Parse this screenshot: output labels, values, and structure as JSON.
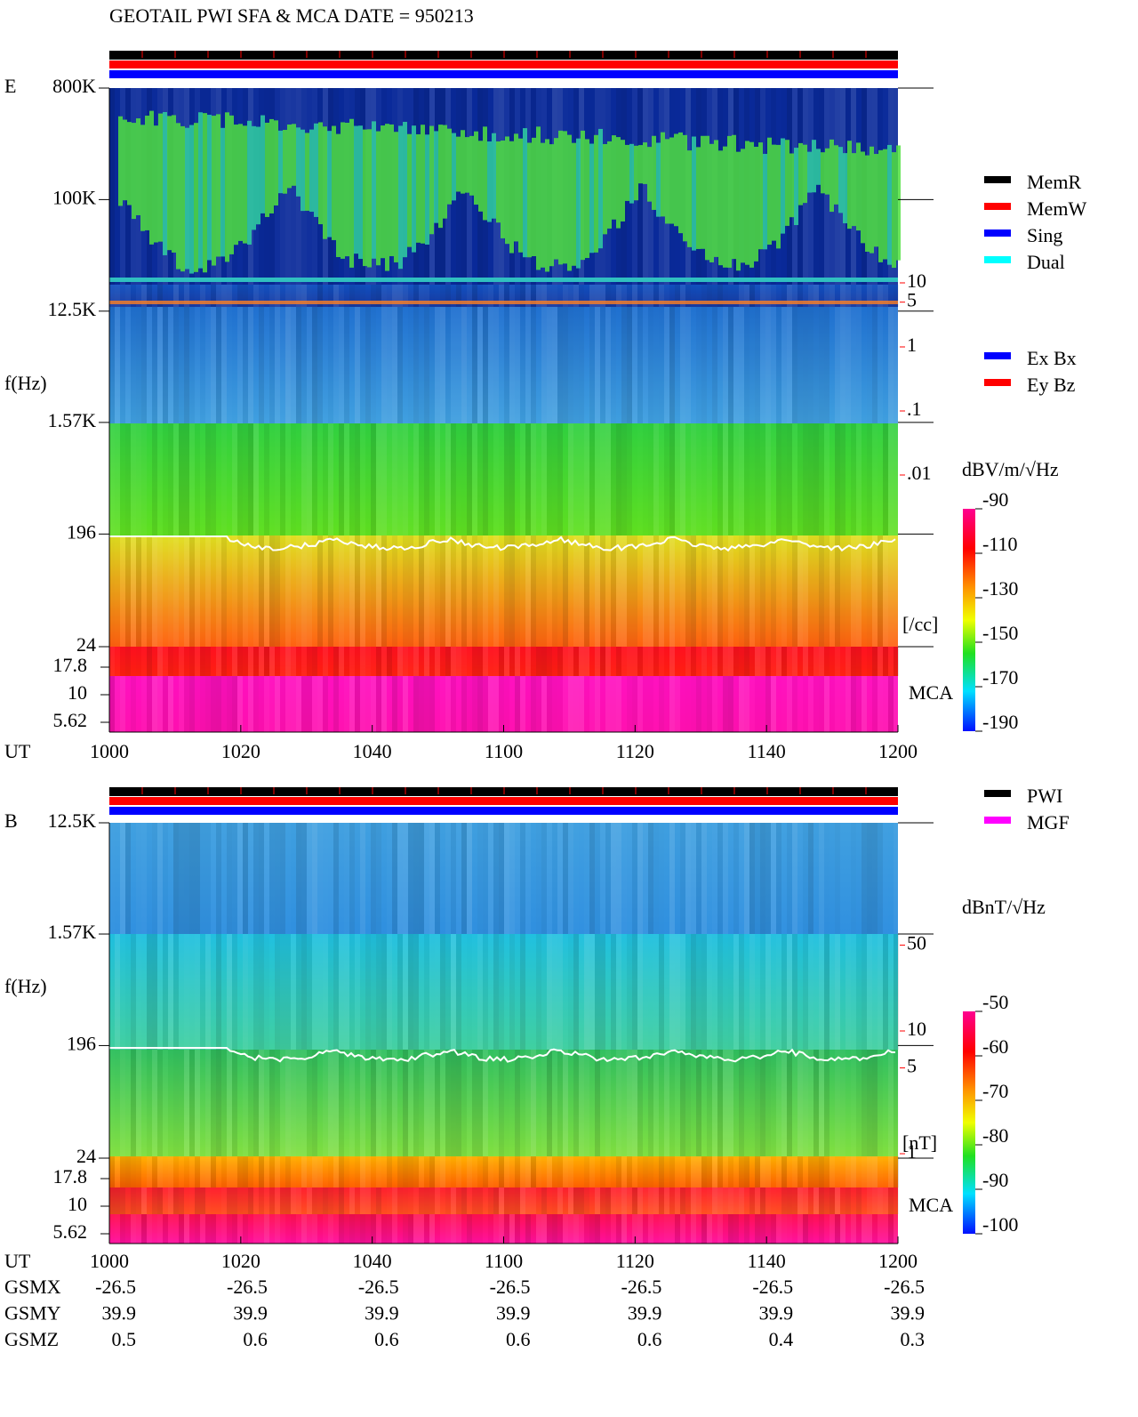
{
  "title": "GEOTAIL  PWI SFA & MCA   DATE = 950213",
  "chart_data": [
    {
      "type": "spectrogram",
      "panel_label": "E",
      "y_label": "f(Hz)",
      "x_label": "UT",
      "categories": [
        "1000",
        "1020",
        "1040",
        "1100",
        "1120",
        "1140",
        "1200"
      ],
      "log_y": true,
      "ylim": [
        24,
        800000
      ],
      "yticks": [
        {
          "value": 800000,
          "label": "800K"
        },
        {
          "value": 100000,
          "label": "100K"
        },
        {
          "value": 12500,
          "label": "12.5K"
        },
        {
          "value": 1570,
          "label": "1.57K"
        },
        196,
        24
      ],
      "mca_label": "MCA",
      "mca_ticks": [
        17.8,
        10,
        5.62
      ],
      "legend": [
        {
          "name": "MemR",
          "color": "#000000"
        },
        {
          "name": "MemW",
          "color": "#ff0000"
        },
        {
          "name": "Sing",
          "color": "#0000ff"
        },
        {
          "name": "Dual",
          "color": "#00ffff"
        }
      ],
      "component_legend": [
        {
          "name": "Ex Bx",
          "color": "#0000ff"
        },
        {
          "name": "Ey Bz",
          "color": "#ff0000"
        }
      ],
      "colorbar": {
        "label": "dBV/m/√Hz",
        "lim": [
          -190,
          -90
        ],
        "ticks": [
          -90,
          -110,
          -130,
          -150,
          -170,
          -190
        ]
      },
      "density_scale": {
        "label": "[/cc]",
        "color": "#ff0000",
        "ticks": [
          10,
          5,
          1,
          {
            "value": 0.1,
            "label": ".1"
          },
          {
            "value": 0.01,
            "label": ".01"
          }
        ]
      }
    },
    {
      "type": "spectrogram",
      "panel_label": "B",
      "y_label": "f(Hz)",
      "x_label": "UT",
      "categories": [
        "1000",
        "1020",
        "1040",
        "1100",
        "1120",
        "1140",
        "1200"
      ],
      "log_y": true,
      "ylim": [
        24,
        12500
      ],
      "yticks": [
        {
          "value": 12500,
          "label": "12.5K"
        },
        {
          "value": 1570,
          "label": "1.57K"
        },
        196,
        24
      ],
      "mca_label": "MCA",
      "mca_ticks": [
        17.8,
        10,
        5.62
      ],
      "legend": [
        {
          "name": "PWI",
          "color": "#000000"
        },
        {
          "name": "MGF",
          "color": "#ff00ff"
        }
      ],
      "colorbar": {
        "label": "dBnT/√Hz",
        "lim": [
          -100,
          -50
        ],
        "ticks": [
          -50,
          -60,
          -70,
          -80,
          -90,
          -100
        ]
      },
      "density_scale": {
        "label": "[nT]",
        "color": "#ff0000",
        "ticks": [
          50,
          10,
          5,
          1
        ]
      }
    }
  ],
  "orbit": [
    {
      "label": "GSMX",
      "values": [
        -26.5,
        -26.5,
        -26.5,
        -26.5,
        -26.5,
        -26.5,
        -26.5
      ]
    },
    {
      "label": "GSMY",
      "values": [
        39.9,
        39.9,
        39.9,
        39.9,
        39.9,
        39.9,
        39.9
      ]
    },
    {
      "label": "GSMZ",
      "values": [
        0.5,
        0.6,
        0.6,
        0.6,
        0.6,
        0.4,
        0.3
      ]
    }
  ]
}
